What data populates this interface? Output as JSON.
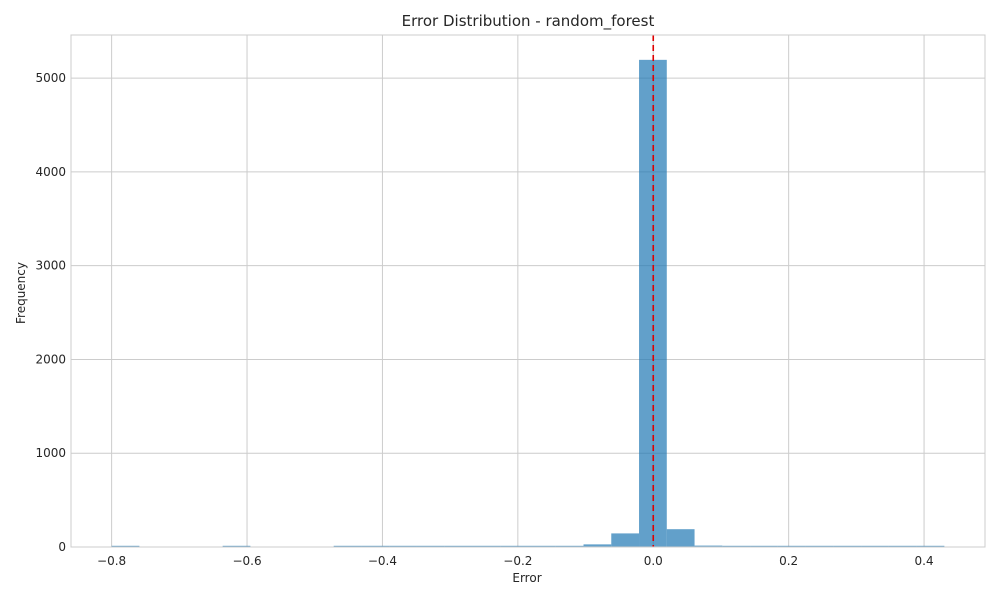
{
  "chart_data": {
    "type": "bar",
    "title": "Error Distribution - random_forest",
    "xlabel": "Error",
    "ylabel": "Frequency",
    "xlim": [
      -0.86,
      0.49
    ],
    "ylim": [
      0,
      5460
    ],
    "grid": true,
    "x_ticks": [
      -0.8,
      -0.6,
      -0.4,
      -0.2,
      0.0,
      0.2,
      0.4
    ],
    "x_tick_labels": [
      "−0.8",
      "−0.6",
      "−0.4",
      "−0.2",
      "0.0",
      "0.2",
      "0.4"
    ],
    "y_ticks": [
      0,
      1000,
      2000,
      3000,
      4000,
      5000
    ],
    "y_tick_labels": [
      "0",
      "1000",
      "2000",
      "3000",
      "4000",
      "5000"
    ],
    "bin_edges": [
      -0.8,
      -0.759,
      -0.718,
      -0.677,
      -0.636,
      -0.595,
      -0.554,
      -0.513,
      -0.472,
      -0.431,
      -0.39,
      -0.349,
      -0.308,
      -0.267,
      -0.226,
      -0.185,
      -0.144,
      -0.103,
      -0.062,
      -0.021,
      0.02,
      0.061,
      0.102,
      0.143,
      0.184,
      0.225,
      0.266,
      0.307,
      0.348,
      0.389,
      0.43
    ],
    "values": [
      3,
      0,
      0,
      0,
      3,
      0,
      0,
      0,
      2,
      2,
      2,
      2,
      2,
      2,
      2,
      3,
      4,
      28,
      145,
      5195,
      190,
      15,
      5,
      3,
      3,
      2,
      2,
      2,
      2,
      2
    ],
    "reference_line": {
      "x": 0.0,
      "color": "#e00000",
      "style": "dashed"
    },
    "bar_color": "#1f77b4"
  }
}
